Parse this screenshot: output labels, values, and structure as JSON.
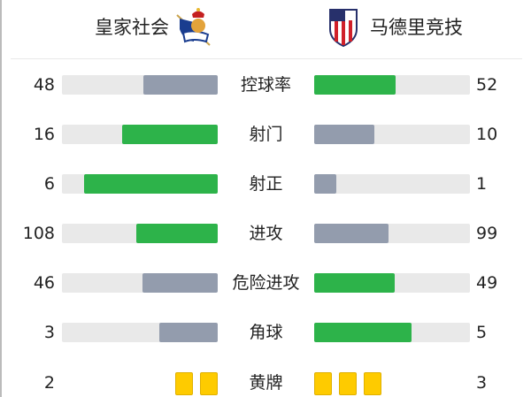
{
  "home": {
    "name": "皇家社会",
    "logo": "real-sociedad-crest"
  },
  "away": {
    "name": "马德里竞技",
    "logo": "atletico-madrid-crest"
  },
  "colors": {
    "leader": "#2db34a",
    "trailer": "#939cad",
    "track": "#e9e9e9",
    "card": "#fecb00"
  },
  "stats": [
    {
      "label": "控球率",
      "home": 48,
      "away": 52
    },
    {
      "label": "射门",
      "home": 16,
      "away": 10
    },
    {
      "label": "射正",
      "home": 6,
      "away": 1
    },
    {
      "label": "进攻",
      "home": 108,
      "away": 99
    },
    {
      "label": "危险进攻",
      "home": 46,
      "away": 49
    },
    {
      "label": "角球",
      "home": 3,
      "away": 5
    }
  ],
  "yellow": {
    "label": "黄牌",
    "home": 2,
    "away": 3
  }
}
